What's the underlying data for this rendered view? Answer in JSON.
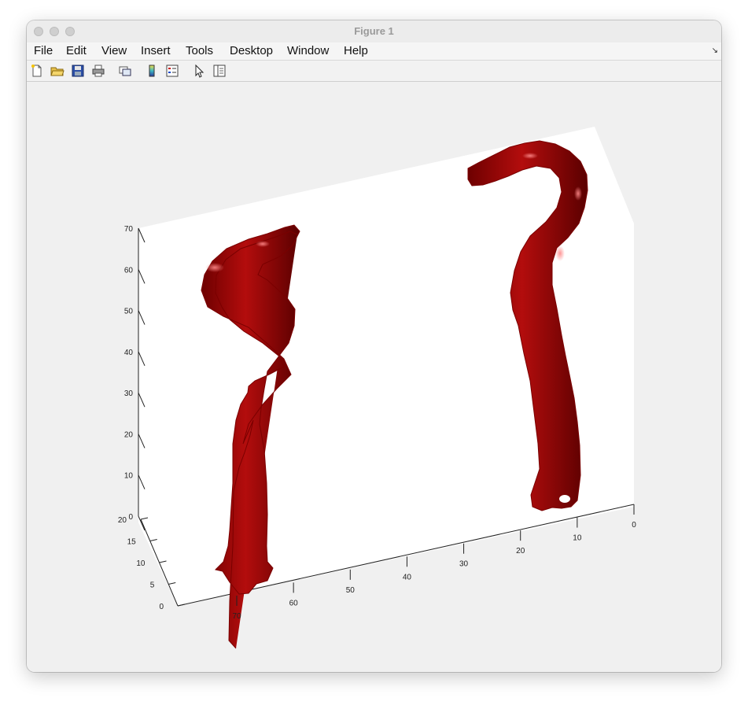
{
  "window": {
    "title": "Figure 1"
  },
  "menu": [
    "File",
    "Edit",
    "View",
    "Insert",
    "Tools",
    "Desktop",
    "Window",
    "Help"
  ],
  "toolbar": [
    {
      "name": "new-figure-icon"
    },
    {
      "name": "open-file-icon"
    },
    {
      "name": "save-icon"
    },
    {
      "name": "print-icon"
    },
    {
      "name": "link-plot-icon"
    },
    {
      "name": "insert-colorbar-icon"
    },
    {
      "name": "insert-legend-icon"
    },
    {
      "name": "pointer-icon"
    },
    {
      "name": "property-inspector-icon"
    }
  ],
  "chart_data": {
    "type": "3d-isosurface",
    "surface_color": "#9b0000",
    "axes": {
      "x_ticks": [
        "0",
        "10",
        "20",
        "30",
        "40",
        "50",
        "60",
        "70"
      ],
      "y_ticks": [
        "0",
        "5",
        "10",
        "15",
        "20"
      ],
      "z_ticks": [
        "0",
        "10",
        "20",
        "30",
        "40",
        "50",
        "60",
        "70"
      ],
      "xlim": [
        0,
        80
      ],
      "ylim": [
        0,
        20
      ],
      "zlim": [
        0,
        70
      ]
    },
    "objects": [
      {
        "name": "left-tube",
        "shape": "S-curve"
      },
      {
        "name": "right-tube",
        "shape": "hook"
      }
    ]
  }
}
